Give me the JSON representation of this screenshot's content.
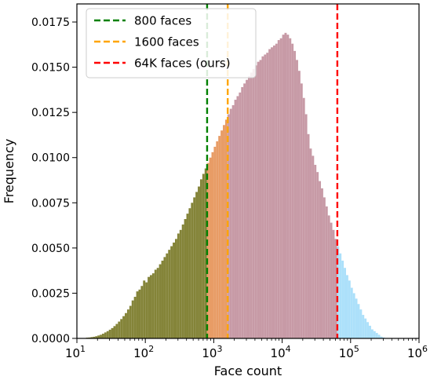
{
  "chart_data": {
    "type": "bar",
    "subtype": "histogram",
    "xlabel": "Face count",
    "ylabel": "Frequency",
    "x_scale": "log",
    "xlim": [
      10,
      1000000
    ],
    "ylim": [
      0,
      0.0185
    ],
    "x_ticks": [
      {
        "value": 10,
        "base": "10",
        "exp": "1"
      },
      {
        "value": 100,
        "base": "10",
        "exp": "2"
      },
      {
        "value": 1000,
        "base": "10",
        "exp": "3"
      },
      {
        "value": 10000,
        "base": "10",
        "exp": "4"
      },
      {
        "value": 100000,
        "base": "10",
        "exp": "5"
      },
      {
        "value": 1000000,
        "base": "10",
        "exp": "6"
      }
    ],
    "y_ticks": [
      {
        "value": 0.0,
        "label": "0.0000"
      },
      {
        "value": 0.0025,
        "label": "0.0025"
      },
      {
        "value": 0.005,
        "label": "0.0050"
      },
      {
        "value": 0.0075,
        "label": "0.0075"
      },
      {
        "value": 0.01,
        "label": "0.0100"
      },
      {
        "value": 0.0125,
        "label": "0.0125"
      },
      {
        "value": 0.015,
        "label": "0.0150"
      },
      {
        "value": 0.0175,
        "label": "0.0175"
      }
    ],
    "grid": false,
    "legend_position": "upper-left",
    "histogram": {
      "bins_per_decade": 30,
      "log10_start": 1.0,
      "frequencies": [
        1e-05,
        1e-05,
        2e-05,
        2e-05,
        4e-05,
        5e-05,
        7e-05,
        9e-05,
        0.00012,
        0.00016,
        0.0002,
        0.00026,
        0.00033,
        0.0004,
        0.00048,
        0.00057,
        0.00068,
        0.0008,
        0.00093,
        0.00107,
        0.00123,
        0.0014,
        0.0016,
        0.0018,
        0.0021,
        0.0023,
        0.0026,
        0.0027,
        0.0029,
        0.0032,
        0.0031,
        0.0034,
        0.0035,
        0.0036,
        0.0038,
        0.0039,
        0.0041,
        0.0043,
        0.0045,
        0.0047,
        0.0049,
        0.0051,
        0.0053,
        0.0055,
        0.0058,
        0.006,
        0.0063,
        0.0066,
        0.0069,
        0.0072,
        0.0075,
        0.0078,
        0.0081,
        0.0084,
        0.0088,
        0.0091,
        0.0094,
        0.0097,
        0.01,
        0.0103,
        0.0106,
        0.0109,
        0.0112,
        0.0115,
        0.0118,
        0.0121,
        0.0124,
        0.0127,
        0.0129,
        0.0132,
        0.0134,
        0.0136,
        0.0139,
        0.0141,
        0.0143,
        0.0145,
        0.0147,
        0.0149,
        0.0151,
        0.0153,
        0.0154,
        0.0156,
        0.0157,
        0.0158,
        0.016,
        0.0161,
        0.0162,
        0.0163,
        0.0165,
        0.0166,
        0.0168,
        0.0169,
        0.0168,
        0.0166,
        0.0163,
        0.0159,
        0.0154,
        0.0148,
        0.0141,
        0.0133,
        0.0124,
        0.0113,
        0.0105,
        0.0101,
        0.0096,
        0.0092,
        0.0087,
        0.0083,
        0.0078,
        0.0073,
        0.0068,
        0.0064,
        0.006,
        0.0055,
        0.0051,
        0.0047,
        0.0043,
        0.0039,
        0.0035,
        0.0032,
        0.0028,
        0.0025,
        0.0022,
        0.0019,
        0.0016,
        0.0013,
        0.0011,
        0.0009,
        0.0007,
        0.0005,
        0.0004,
        0.0003,
        0.0002,
        0.0001,
        5e-05
      ]
    },
    "region_colors": [
      "#848439",
      "#e89c66",
      "#c79aa6",
      "#ace0fa"
    ],
    "series": [
      {
        "name": "800 faces",
        "threshold": 800,
        "color": "#008000",
        "style": "dashed"
      },
      {
        "name": "1600 faces",
        "threshold": 1600,
        "color": "#ffa500",
        "style": "dashed"
      },
      {
        "name": "64K faces (ours)",
        "threshold": 64000,
        "color": "#ff0000",
        "style": "dashed"
      }
    ]
  }
}
